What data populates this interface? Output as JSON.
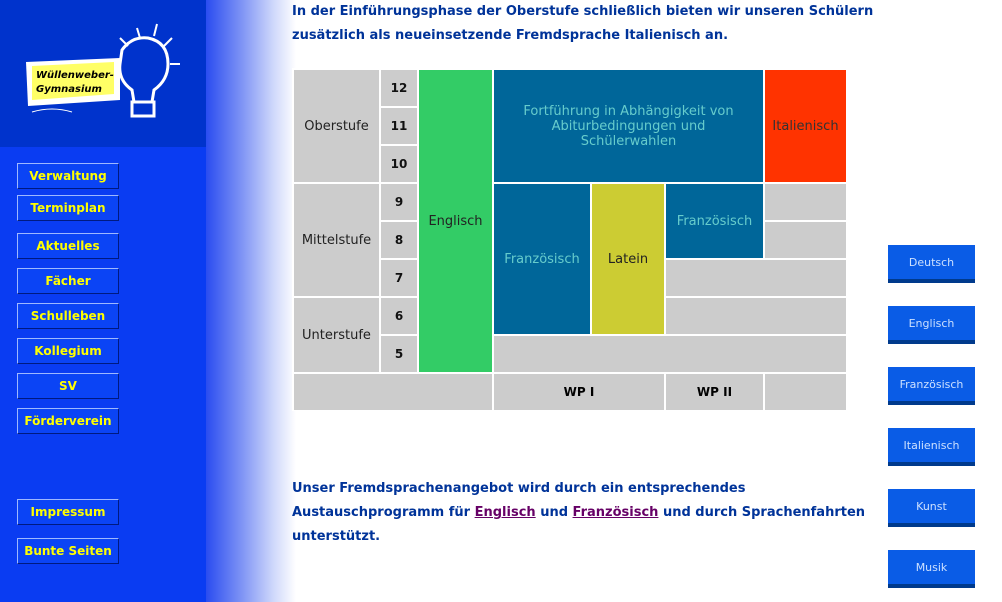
{
  "logo": {
    "line1": "Wüllenweber-",
    "line2": "Gymnasium"
  },
  "nav": {
    "items": [
      "Verwaltung",
      "Terminplan",
      "Aktuelles",
      "Fächer",
      "Schulleben",
      "Kollegium",
      "SV",
      "Förderverein"
    ],
    "bottom": [
      "Impressum",
      "Bunte Seiten"
    ]
  },
  "intro": {
    "line1": "In der Einführungsphase der Oberstufe schließlich bieten wir unseren Schülern",
    "line2": "zusätzlich als neueinsetzende Fremdsprache Italienisch an."
  },
  "table": {
    "stages": {
      "oberstufe": "Oberstufe",
      "mittelstufe": "Mittelstufe",
      "unterstufe": "Unterstufe"
    },
    "grades": [
      "12",
      "11",
      "10",
      "9",
      "8",
      "7",
      "6",
      "5"
    ],
    "englisch": "Englisch",
    "fortfuehrung": "Fortführung in Abhängigkeit von Abiturbedingungen und Schülerwahlen",
    "italienisch": "Italienisch",
    "franzoesisch_wp1": "Französisch",
    "latein": "Latein",
    "franzoesisch_wp2": "Französisch",
    "wp1": "WP I",
    "wp2": "WP II"
  },
  "outro": {
    "line1": "Unser Fremdsprachenangebot wird durch ein entsprechendes",
    "line2_pre": "Austauschprogramm für ",
    "link_englisch": "Englisch",
    "line2_mid": " und ",
    "link_franzoesisch": "Französisch",
    "line2_post": " und durch Sprachenfahrten",
    "line3": "unterstützt."
  },
  "subjects": [
    "Deutsch",
    "Englisch",
    "Französisch",
    "Italienisch",
    "Kunst",
    "Musik"
  ]
}
